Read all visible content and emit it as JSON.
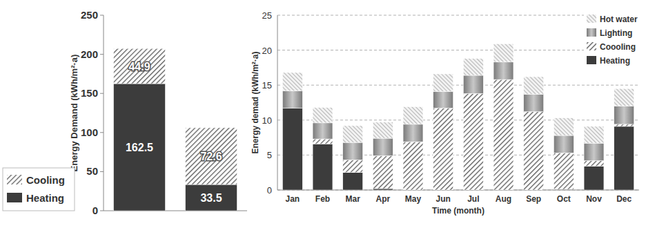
{
  "chart_data": [
    {
      "type": "bar",
      "stacked": true,
      "ylabel": "Energy Demand (kWh/m²·a)",
      "categories": [
        null,
        null
      ],
      "ylim": [
        0,
        250
      ],
      "yticks": [
        0,
        50,
        100,
        150,
        200,
        250
      ],
      "grid": false,
      "legend": "lower left",
      "data_labels": true,
      "series": [
        {
          "name": "Heating",
          "color": "#3c3c3c",
          "values": [
            162.5,
            33.5
          ]
        },
        {
          "name": "Cooling",
          "color": "#5a5a5a",
          "values": [
            44.9,
            72.6
          ]
        }
      ]
    },
    {
      "type": "bar",
      "stacked": true,
      "ylabel": "Energy demad (kWh/m²·a)",
      "xlabel": "Time (month)",
      "categories": [
        "Jan",
        "Feb",
        "Mar",
        "Apr",
        "May",
        "Jun",
        "Jul",
        "Aug",
        "Sep",
        "Oct",
        "Nov",
        "Dec"
      ],
      "ylim": [
        0,
        25
      ],
      "yticks": [
        0,
        5,
        10,
        15,
        20,
        25
      ],
      "grid": true,
      "legend": "upper right",
      "series": [
        {
          "name": "Heating",
          "color": "#3c3c3c",
          "values": [
            11.7,
            6.6,
            2.5,
            0.2,
            0,
            0,
            0,
            0,
            0,
            0.1,
            3.4,
            9.1
          ]
        },
        {
          "name": "Coooling",
          "color": "#5a5a5a",
          "values": [
            0,
            0.7,
            1.8,
            4.7,
            6.9,
            11.7,
            13.8,
            15.8,
            11.2,
            5.2,
            0.8,
            0.3
          ]
        },
        {
          "name": "Lighting",
          "color": "#7a7a7a",
          "values": [
            2.5,
            2.3,
            2.5,
            2.5,
            2.5,
            2.4,
            2.6,
            2.5,
            2.5,
            2.5,
            2.5,
            2.6
          ]
        },
        {
          "name": "Hot water",
          "color": "#8c8c8c",
          "values": [
            2.6,
            2.2,
            2.4,
            2.3,
            2.5,
            2.5,
            2.4,
            2.6,
            2.5,
            2.5,
            2.4,
            2.5
          ]
        }
      ]
    }
  ]
}
